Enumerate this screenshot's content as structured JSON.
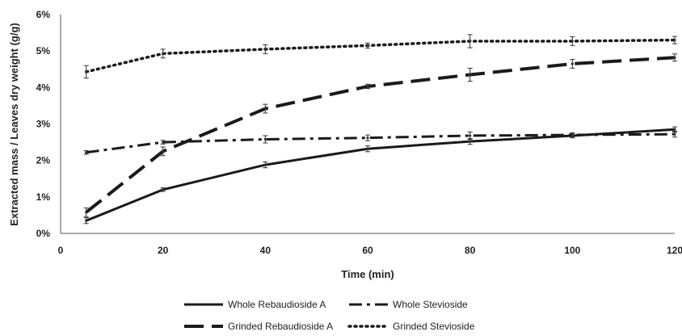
{
  "chart_data": {
    "type": "line",
    "title": "",
    "xlabel": "Time (min)",
    "ylabel": "Extracted mass / Leaves dry weight (g/g)",
    "xlim": [
      0,
      120
    ],
    "ylim": [
      0,
      6
    ],
    "x_ticks": [
      "0",
      "20",
      "40",
      "60",
      "80",
      "100",
      "120"
    ],
    "y_ticks": [
      "0%",
      "1%",
      "2%",
      "3%",
      "4%",
      "5%",
      "6%"
    ],
    "grid": false,
    "legend_position": "bottom",
    "series": [
      {
        "name": "Whole Rebaudioside A",
        "style": "solid",
        "color": "#1a1a1a",
        "x": [
          5,
          20,
          40,
          60,
          80,
          100,
          120
        ],
        "y": [
          0.35,
          1.2,
          1.88,
          2.32,
          2.52,
          2.68,
          2.85
        ],
        "err": [
          0.08,
          0.05,
          0.08,
          0.08,
          0.08,
          0.06,
          0.07
        ]
      },
      {
        "name": "Whole Stevioside",
        "style": "dash-dot",
        "color": "#1a1a1a",
        "x": [
          5,
          20,
          40,
          60,
          80,
          100,
          120
        ],
        "y": [
          2.22,
          2.5,
          2.58,
          2.62,
          2.68,
          2.7,
          2.72
        ],
        "err": [
          0.05,
          0.05,
          0.1,
          0.08,
          0.1,
          0.06,
          0.08
        ]
      },
      {
        "name": "Grinded Rebaudioside A",
        "style": "long-dash",
        "color": "#1a1a1a",
        "x": [
          5,
          20,
          40,
          60,
          80,
          100,
          120
        ],
        "y": [
          0.58,
          2.25,
          3.42,
          4.03,
          4.35,
          4.65,
          4.82
        ],
        "err": [
          0.12,
          0.12,
          0.12,
          0.06,
          0.18,
          0.12,
          0.1
        ]
      },
      {
        "name": "Grinded Stevioside",
        "style": "dotted",
        "color": "#1a1a1a",
        "x": [
          5,
          20,
          40,
          60,
          80,
          100,
          120
        ],
        "y": [
          4.43,
          4.93,
          5.05,
          5.15,
          5.27,
          5.27,
          5.3
        ],
        "err": [
          0.17,
          0.12,
          0.12,
          0.07,
          0.18,
          0.12,
          0.1
        ]
      }
    ]
  }
}
